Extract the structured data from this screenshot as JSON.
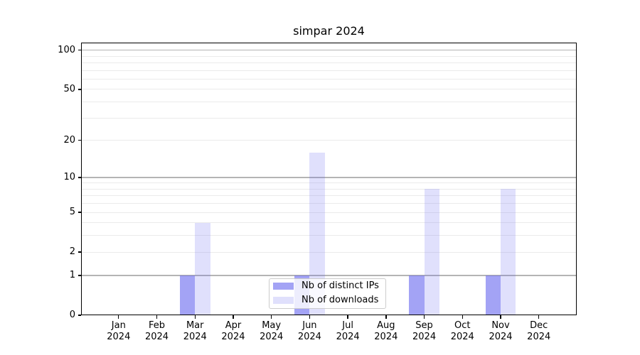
{
  "chart_data": {
    "type": "bar",
    "title": "simpar 2024",
    "categories": [
      "Jan 2024",
      "Feb 2024",
      "Mar 2024",
      "Apr 2024",
      "May 2024",
      "Jun 2024",
      "Jul 2024",
      "Aug 2024",
      "Sep 2024",
      "Oct 2024",
      "Nov 2024",
      "Dec 2024"
    ],
    "series": [
      {
        "name": "Nb of distinct IPs",
        "base_color": "#6666ee",
        "alpha": 0.6,
        "values": [
          0,
          0,
          1,
          0,
          0,
          1,
          0,
          0,
          1,
          0,
          1,
          0
        ]
      },
      {
        "name": "Nb of downloads",
        "base_color": "#6666ee",
        "alpha": 0.2,
        "values": [
          0,
          0,
          4,
          0,
          0,
          16,
          0,
          0,
          8,
          0,
          8,
          0
        ]
      }
    ],
    "yscale": "log1p",
    "yticks": [
      0,
      1,
      2,
      5,
      10,
      20,
      50,
      100
    ],
    "ylim": [
      0,
      114
    ],
    "grid": {
      "major_values": [
        1,
        10,
        100
      ],
      "minor_values": [
        2,
        3,
        4,
        5,
        6,
        7,
        8,
        9,
        20,
        30,
        40,
        50,
        60,
        70,
        80,
        90
      ],
      "major_color": "#b4b4b4",
      "minor_color": "#ebebeb"
    },
    "legend_position": "lower center",
    "colors": {
      "axis": "#000000",
      "background": "#ffffff",
      "text": "#000000"
    }
  }
}
